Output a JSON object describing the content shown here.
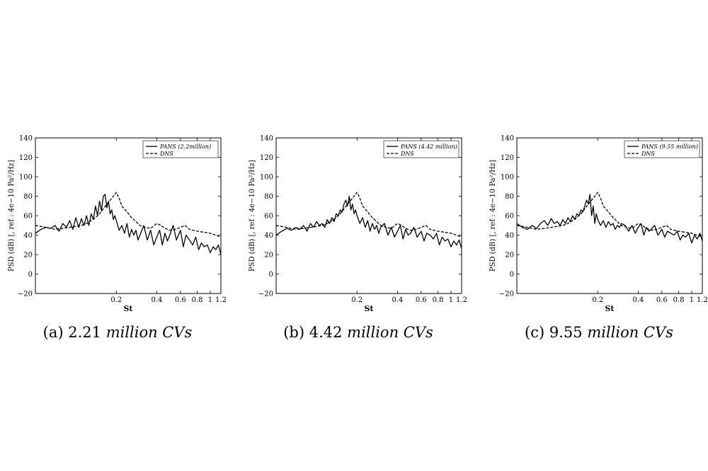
{
  "chart_data": [
    {
      "type": "line",
      "caption_prefix": "(a) 2.21",
      "caption_words": "million CVs",
      "xlabel": "St",
      "ylabel": "PSD (dB) [, ref : 4e−10 Pa²/Hz]",
      "ylim": [
        -20,
        140
      ],
      "yticks": [
        -20,
        0,
        20,
        40,
        60,
        80,
        100,
        120,
        140
      ],
      "xlim": [
        0.05,
        1.2
      ],
      "xscale": "log",
      "xticks": [
        0.2,
        0.4,
        0.6,
        0.8,
        1,
        1.2
      ],
      "xtick_labels": [
        "0.2",
        "0.4",
        "0.6",
        "0.8",
        "1",
        "1.2"
      ],
      "grid": false,
      "legend_position": "top-right",
      "series": [
        {
          "name": "PANS (2.2million)",
          "style": "solid",
          "x": [
            0.05,
            0.055,
            0.06,
            0.065,
            0.07,
            0.075,
            0.08,
            0.085,
            0.09,
            0.095,
            0.1,
            0.105,
            0.11,
            0.115,
            0.12,
            0.125,
            0.13,
            0.135,
            0.14,
            0.145,
            0.15,
            0.155,
            0.16,
            0.165,
            0.17,
            0.175,
            0.18,
            0.185,
            0.19,
            0.195,
            0.2,
            0.21,
            0.22,
            0.23,
            0.24,
            0.25,
            0.26,
            0.27,
            0.28,
            0.29,
            0.3,
            0.32,
            0.34,
            0.36,
            0.38,
            0.4,
            0.42,
            0.44,
            0.46,
            0.48,
            0.5,
            0.53,
            0.56,
            0.6,
            0.63,
            0.66,
            0.7,
            0.74,
            0.78,
            0.82,
            0.86,
            0.9,
            0.95,
            1.0,
            1.05,
            1.1,
            1.15,
            1.2
          ],
          "y": [
            42,
            46,
            48,
            47,
            50,
            44,
            52,
            48,
            55,
            46,
            58,
            48,
            57,
            50,
            60,
            50,
            62,
            56,
            70,
            60,
            75,
            65,
            80,
            82,
            68,
            75,
            62,
            66,
            56,
            60,
            55,
            45,
            50,
            42,
            52,
            38,
            46,
            40,
            45,
            35,
            40,
            50,
            35,
            45,
            30,
            38,
            45,
            30,
            42,
            34,
            40,
            50,
            35,
            45,
            28,
            40,
            35,
            30,
            38,
            25,
            32,
            28,
            30,
            22,
            28,
            25,
            30,
            20
          ]
        },
        {
          "name": "DNS",
          "style": "dashed",
          "x": [
            0.05,
            0.06,
            0.07,
            0.08,
            0.09,
            0.1,
            0.11,
            0.12,
            0.13,
            0.14,
            0.15,
            0.16,
            0.17,
            0.18,
            0.19,
            0.2,
            0.21,
            0.22,
            0.24,
            0.26,
            0.28,
            0.3,
            0.33,
            0.36,
            0.4,
            0.43,
            0.46,
            0.5,
            0.55,
            0.6,
            0.65,
            0.7,
            0.8,
            0.9,
            1.0,
            1.1,
            1.2
          ],
          "y": [
            50,
            48,
            46,
            47,
            48,
            49,
            50,
            52,
            55,
            58,
            62,
            67,
            72,
            76,
            80,
            84,
            78,
            70,
            64,
            58,
            54,
            50,
            48,
            47,
            52,
            50,
            47,
            45,
            46,
            48,
            50,
            46,
            44,
            43,
            42,
            40,
            38
          ]
        }
      ]
    },
    {
      "type": "line",
      "caption_prefix": "(b) 4.42",
      "caption_words": "million CVs",
      "xlabel": "St",
      "ylabel": "PSD (dB) [, ref : 4e−10 Pa²/Hz]",
      "ylim": [
        -20,
        140
      ],
      "yticks": [
        -20,
        0,
        20,
        40,
        60,
        80,
        100,
        120,
        140
      ],
      "xlim": [
        0.05,
        1.2
      ],
      "xscale": "log",
      "xticks": [
        0.2,
        0.4,
        0.6,
        0.8,
        1,
        1.2
      ],
      "xtick_labels": [
        "0.2",
        "0.4",
        "0.6",
        "0.8",
        "1",
        "1.2"
      ],
      "grid": false,
      "legend_position": "top-right",
      "series": [
        {
          "name": "PANS (4.42 million)",
          "style": "solid",
          "x": [
            0.05,
            0.055,
            0.06,
            0.065,
            0.07,
            0.075,
            0.08,
            0.085,
            0.09,
            0.095,
            0.1,
            0.105,
            0.11,
            0.115,
            0.12,
            0.125,
            0.13,
            0.135,
            0.14,
            0.145,
            0.15,
            0.155,
            0.16,
            0.165,
            0.17,
            0.175,
            0.18,
            0.185,
            0.19,
            0.195,
            0.2,
            0.21,
            0.22,
            0.23,
            0.24,
            0.25,
            0.26,
            0.27,
            0.28,
            0.29,
            0.3,
            0.32,
            0.34,
            0.36,
            0.38,
            0.4,
            0.42,
            0.44,
            0.46,
            0.48,
            0.5,
            0.53,
            0.56,
            0.6,
            0.63,
            0.66,
            0.7,
            0.74,
            0.78,
            0.82,
            0.86,
            0.9,
            0.95,
            1.0,
            1.05,
            1.1,
            1.15,
            1.2
          ],
          "y": [
            40,
            44,
            47,
            45,
            48,
            46,
            50,
            44,
            52,
            48,
            54,
            50,
            52,
            48,
            56,
            52,
            58,
            54,
            62,
            60,
            66,
            64,
            72,
            76,
            70,
            80,
            66,
            72,
            62,
            66,
            60,
            52,
            58,
            48,
            55,
            44,
            52,
            46,
            50,
            42,
            48,
            52,
            40,
            48,
            38,
            44,
            50,
            36,
            46,
            40,
            42,
            48,
            38,
            44,
            34,
            42,
            40,
            36,
            42,
            30,
            38,
            34,
            36,
            28,
            34,
            30,
            35,
            26
          ]
        },
        {
          "name": "DNS",
          "style": "dashed",
          "x": [
            0.05,
            0.06,
            0.07,
            0.08,
            0.09,
            0.1,
            0.11,
            0.12,
            0.13,
            0.14,
            0.15,
            0.16,
            0.17,
            0.18,
            0.19,
            0.2,
            0.21,
            0.22,
            0.24,
            0.26,
            0.28,
            0.3,
            0.33,
            0.36,
            0.4,
            0.43,
            0.46,
            0.5,
            0.55,
            0.6,
            0.65,
            0.7,
            0.8,
            0.9,
            1.0,
            1.1,
            1.2
          ],
          "y": [
            50,
            48,
            46,
            47,
            48,
            49,
            50,
            52,
            55,
            58,
            62,
            67,
            72,
            76,
            80,
            84,
            78,
            70,
            64,
            58,
            54,
            50,
            48,
            47,
            52,
            50,
            47,
            45,
            46,
            48,
            50,
            46,
            44,
            43,
            42,
            40,
            38
          ]
        }
      ]
    },
    {
      "type": "line",
      "caption_prefix": "(c) 9.55",
      "caption_words": "million CVs",
      "xlabel": "St",
      "ylabel": "PSD (dB) [, ref : 4e−10 Pa²/Hz]",
      "ylim": [
        -20,
        140
      ],
      "yticks": [
        -20,
        0,
        20,
        40,
        60,
        80,
        100,
        120,
        140
      ],
      "xlim": [
        0.05,
        1.2
      ],
      "xscale": "log",
      "xticks": [
        0.2,
        0.4,
        0.6,
        0.8,
        1,
        1.2
      ],
      "xtick_labels": [
        "0.2",
        "0.4",
        "0.6",
        "0.8",
        "1",
        "1.2"
      ],
      "grid": false,
      "legend_position": "top-right",
      "series": [
        {
          "name": "PANS (9.55 million)",
          "style": "solid",
          "x": [
            0.05,
            0.055,
            0.06,
            0.065,
            0.07,
            0.075,
            0.08,
            0.085,
            0.09,
            0.095,
            0.1,
            0.105,
            0.11,
            0.115,
            0.12,
            0.125,
            0.13,
            0.135,
            0.14,
            0.145,
            0.15,
            0.155,
            0.16,
            0.165,
            0.17,
            0.175,
            0.18,
            0.185,
            0.19,
            0.195,
            0.2,
            0.21,
            0.22,
            0.23,
            0.24,
            0.25,
            0.26,
            0.27,
            0.28,
            0.29,
            0.3,
            0.32,
            0.34,
            0.36,
            0.38,
            0.4,
            0.42,
            0.44,
            0.46,
            0.48,
            0.5,
            0.53,
            0.56,
            0.6,
            0.63,
            0.66,
            0.7,
            0.74,
            0.78,
            0.82,
            0.86,
            0.9,
            0.95,
            1.0,
            1.05,
            1.1,
            1.15,
            1.2
          ],
          "y": [
            52,
            48,
            46,
            50,
            47,
            52,
            55,
            50,
            57,
            52,
            54,
            50,
            56,
            52,
            58,
            54,
            60,
            56,
            62,
            60,
            66,
            64,
            70,
            76,
            72,
            82,
            60,
            70,
            52,
            62,
            56,
            50,
            55,
            48,
            54,
            50,
            52,
            46,
            50,
            48,
            52,
            50,
            44,
            50,
            42,
            48,
            52,
            40,
            48,
            44,
            46,
            50,
            40,
            46,
            38,
            44,
            42,
            40,
            44,
            35,
            40,
            38,
            42,
            32,
            40,
            36,
            42,
            34
          ]
        },
        {
          "name": "DNS",
          "style": "dashed",
          "x": [
            0.05,
            0.06,
            0.07,
            0.08,
            0.09,
            0.1,
            0.11,
            0.12,
            0.13,
            0.14,
            0.15,
            0.16,
            0.17,
            0.18,
            0.19,
            0.2,
            0.21,
            0.22,
            0.24,
            0.26,
            0.28,
            0.3,
            0.33,
            0.36,
            0.4,
            0.43,
            0.46,
            0.5,
            0.55,
            0.6,
            0.65,
            0.7,
            0.8,
            0.9,
            1.0,
            1.1,
            1.2
          ],
          "y": [
            50,
            48,
            46,
            47,
            48,
            49,
            50,
            52,
            55,
            58,
            62,
            67,
            72,
            76,
            80,
            84,
            78,
            70,
            64,
            58,
            54,
            50,
            48,
            47,
            52,
            50,
            47,
            45,
            46,
            48,
            50,
            46,
            44,
            43,
            42,
            40,
            38
          ]
        }
      ]
    }
  ]
}
